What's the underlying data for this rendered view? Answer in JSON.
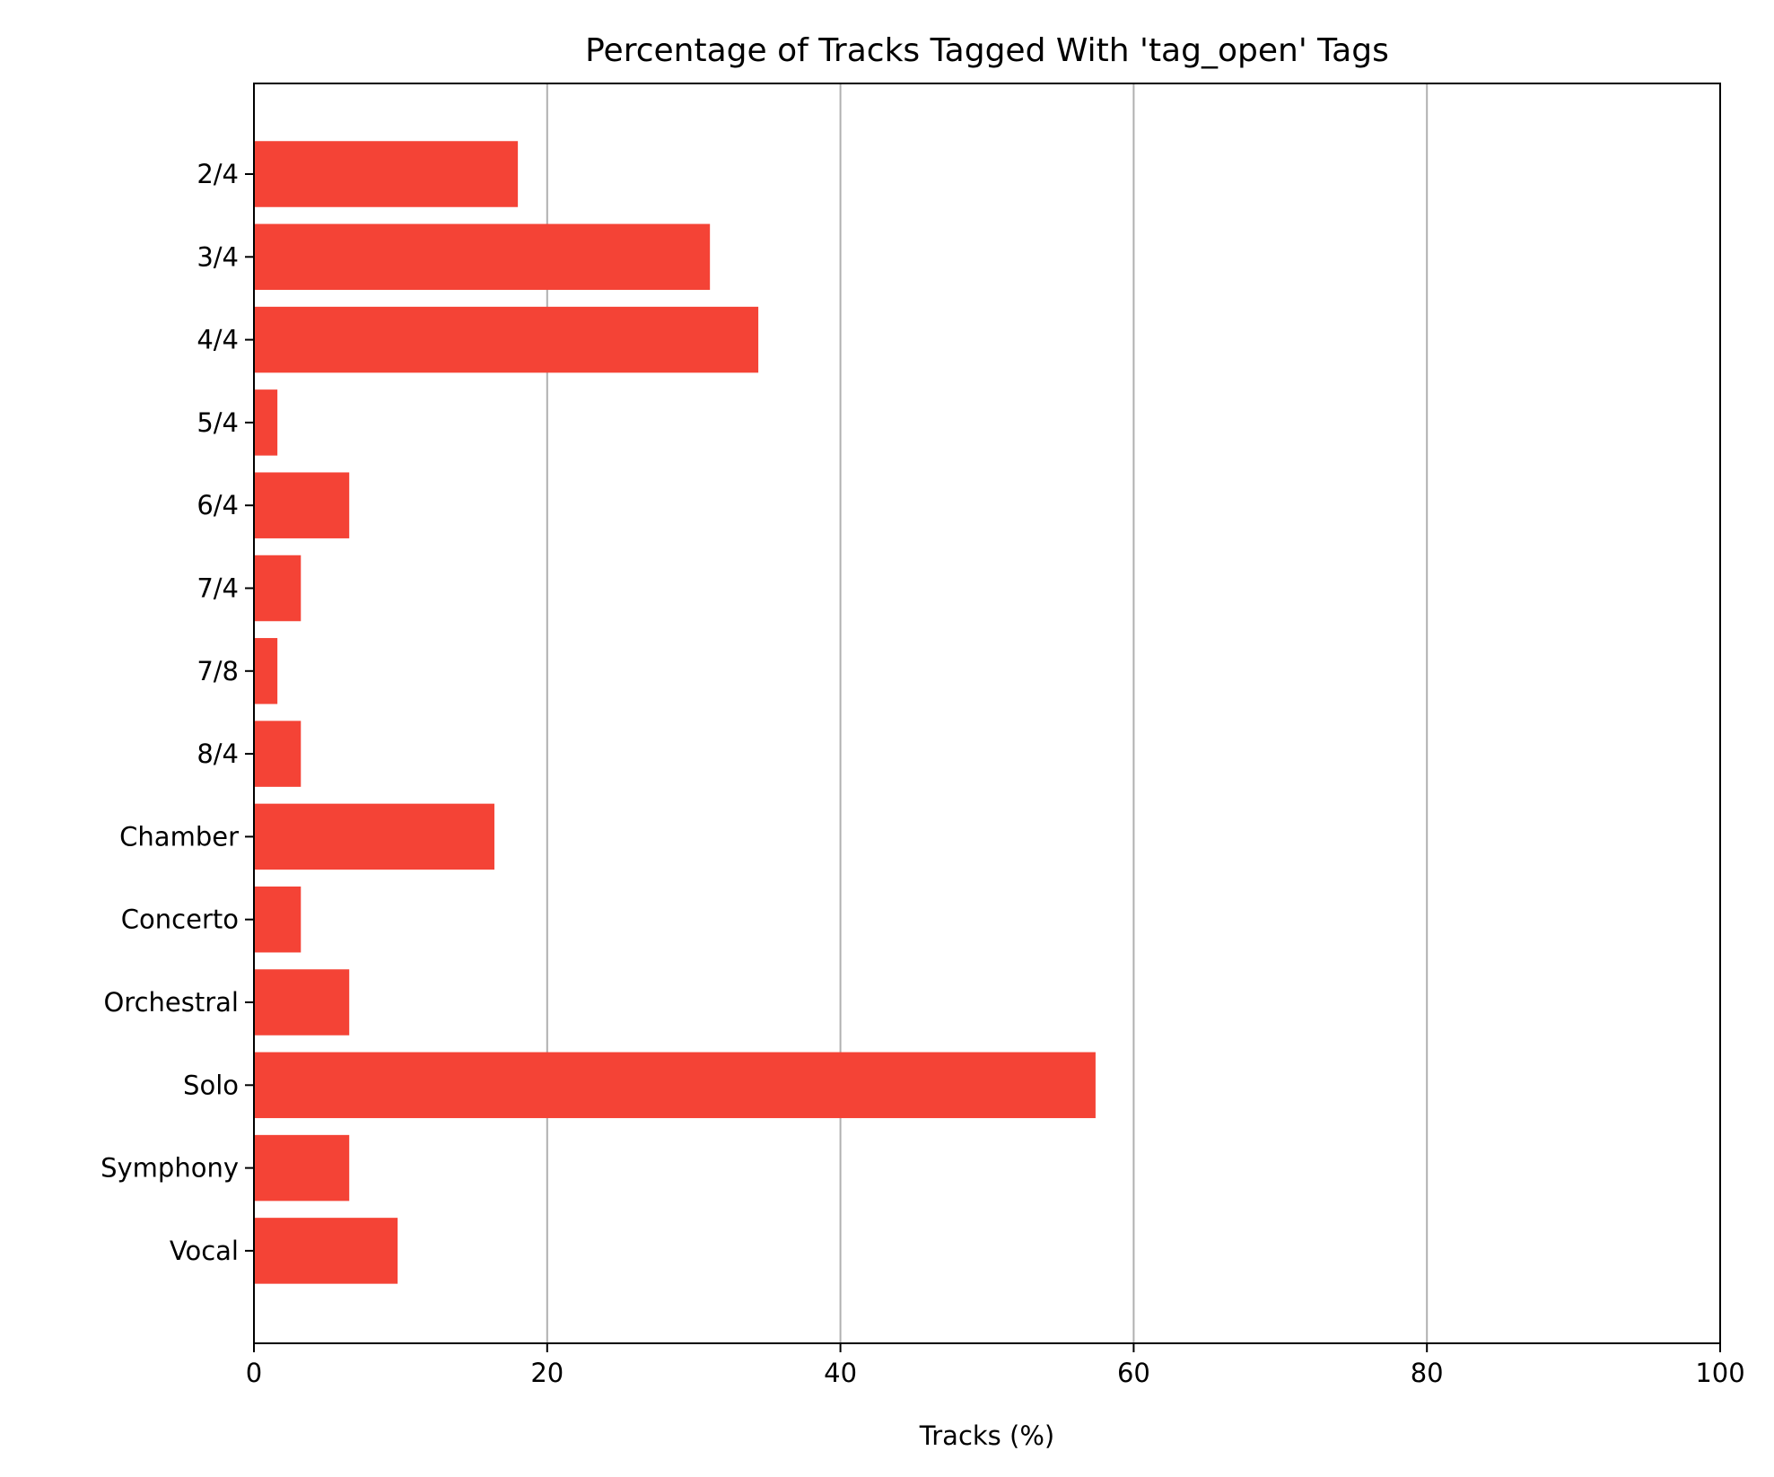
{
  "chart_data": {
    "type": "bar",
    "orientation": "horizontal",
    "title": "Percentage of Tracks Tagged With 'tag_open' Tags",
    "xlabel": "Tracks (%)",
    "ylabel": "",
    "xlim": [
      0,
      100
    ],
    "xticks": [
      0,
      20,
      40,
      60,
      80,
      100
    ],
    "xtick_labels": [
      "0",
      "20",
      "40",
      "60",
      "80",
      "100"
    ],
    "grid": "vertical lines on x ticks",
    "categories": [
      "2/4",
      "3/4",
      "4/4",
      "5/4",
      "6/4",
      "7/4",
      "7/8",
      "8/4",
      "Chamber",
      "Concerto",
      "Orchestral",
      "Solo",
      "Symphony",
      "Vocal"
    ],
    "values": [
      18.0,
      31.1,
      34.4,
      1.6,
      6.5,
      3.2,
      1.6,
      3.2,
      16.4,
      3.2,
      6.5,
      57.4,
      6.5,
      9.8
    ],
    "bar_color": "#f44336",
    "grid_color": "#b0b0b0"
  }
}
